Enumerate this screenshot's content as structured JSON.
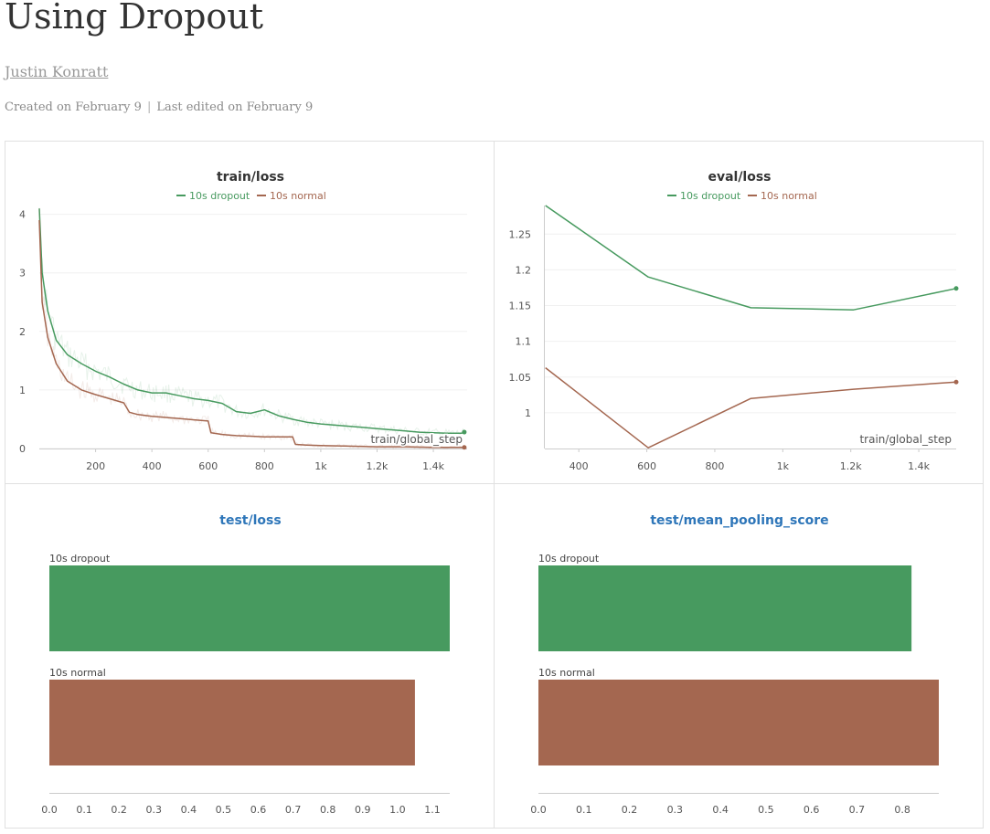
{
  "report": {
    "title": "Using Dropout",
    "author": "Justin Konratt",
    "created": "Created on February 9",
    "edited": "Last edited on February 9"
  },
  "colors": {
    "dropout": "#479A5F",
    "normal": "#A46750",
    "link_title": "#2E76B9"
  },
  "chart_data": [
    {
      "type": "line",
      "title": "train/loss",
      "xlabel": "train/global_step",
      "ylabel": "",
      "xlim": [
        0,
        1520
      ],
      "ylim": [
        0,
        4.15
      ],
      "xticks": [
        200,
        400,
        600,
        800,
        1000,
        1200,
        1400
      ],
      "xtick_labels": [
        "200",
        "400",
        "600",
        "800",
        "1k",
        "1.2k",
        "1.4k"
      ],
      "yticks": [
        0,
        1,
        2,
        3,
        4
      ],
      "ytick_labels": [
        "0",
        "1",
        "2",
        "3",
        "4"
      ],
      "legend": "top",
      "smoothed": true,
      "series": [
        {
          "name": "10s dropout",
          "color": "#479A5F",
          "x": [
            0,
            10,
            30,
            60,
            100,
            150,
            200,
            250,
            300,
            350,
            400,
            450,
            500,
            550,
            600,
            650,
            700,
            750,
            800,
            850,
            900,
            950,
            1000,
            1050,
            1100,
            1150,
            1200,
            1250,
            1300,
            1350,
            1400,
            1450,
            1500,
            1510
          ],
          "y": [
            4.1,
            3.0,
            2.35,
            1.85,
            1.6,
            1.45,
            1.32,
            1.22,
            1.1,
            1.0,
            0.95,
            0.95,
            0.9,
            0.85,
            0.82,
            0.77,
            0.63,
            0.6,
            0.66,
            0.56,
            0.5,
            0.45,
            0.42,
            0.4,
            0.38,
            0.36,
            0.34,
            0.32,
            0.3,
            0.28,
            0.27,
            0.26,
            0.26,
            0.28
          ]
        },
        {
          "name": "10s normal",
          "color": "#A46750",
          "x": [
            0,
            10,
            30,
            60,
            100,
            150,
            200,
            250,
            300,
            320,
            350,
            400,
            450,
            500,
            550,
            600,
            610,
            650,
            700,
            750,
            800,
            850,
            900,
            910,
            950,
            1000,
            1100,
            1200,
            1300,
            1400,
            1450,
            1500,
            1510
          ],
          "y": [
            3.9,
            2.5,
            1.9,
            1.45,
            1.15,
            1.0,
            0.92,
            0.85,
            0.78,
            0.62,
            0.58,
            0.55,
            0.53,
            0.51,
            0.49,
            0.47,
            0.27,
            0.24,
            0.22,
            0.21,
            0.2,
            0.2,
            0.2,
            0.07,
            0.06,
            0.05,
            0.04,
            0.03,
            0.03,
            0.02,
            0.02,
            0.02,
            0.02
          ]
        }
      ]
    },
    {
      "type": "line",
      "title": "eval/loss",
      "xlabel": "train/global_step",
      "ylabel": "",
      "xlim": [
        300,
        1510
      ],
      "ylim": [
        0.95,
        1.29
      ],
      "xticks": [
        400,
        600,
        800,
        1000,
        1200,
        1400
      ],
      "xtick_labels": [
        "400",
        "600",
        "800",
        "1k",
        "1.2k",
        "1.4k"
      ],
      "yticks": [
        1,
        1.05,
        1.1,
        1.15,
        1.2,
        1.25
      ],
      "ytick_labels": [
        "1",
        "1.05",
        "1.1",
        "1.15",
        "1.2",
        "1.25"
      ],
      "legend": "top",
      "series": [
        {
          "name": "10s dropout",
          "color": "#479A5F",
          "x": [
            302,
            604,
            906,
            1208,
            1510
          ],
          "y": [
            1.29,
            1.19,
            1.147,
            1.144,
            1.174
          ]
        },
        {
          "name": "10s normal",
          "color": "#A46750",
          "x": [
            302,
            604,
            906,
            1208,
            1510
          ],
          "y": [
            1.063,
            0.951,
            1.02,
            1.033,
            1.043
          ]
        }
      ]
    },
    {
      "type": "bar",
      "orientation": "horizontal",
      "title": "test/loss",
      "categories": [
        "10s dropout",
        "10s normal"
      ],
      "values": [
        1.15,
        1.05
      ],
      "colors": [
        "#479A5F",
        "#A46750"
      ],
      "xlim": [
        0,
        1.15
      ],
      "xticks": [
        0,
        0.1,
        0.2,
        0.3,
        0.4,
        0.5,
        0.6,
        0.7,
        0.8,
        0.9,
        1.0,
        1.1
      ],
      "xtick_labels": [
        "0.0",
        "0.1",
        "0.2",
        "0.3",
        "0.4",
        "0.5",
        "0.6",
        "0.7",
        "0.8",
        "0.9",
        "1.0",
        "1.1"
      ]
    },
    {
      "type": "bar",
      "orientation": "horizontal",
      "title": "test/mean_pooling_score",
      "categories": [
        "10s dropout",
        "10s normal"
      ],
      "values": [
        0.82,
        0.88
      ],
      "colors": [
        "#479A5F",
        "#A46750"
      ],
      "xlim": [
        0,
        0.88
      ],
      "xticks": [
        0,
        0.1,
        0.2,
        0.3,
        0.4,
        0.5,
        0.6,
        0.7,
        0.8
      ],
      "xtick_labels": [
        "0.0",
        "0.1",
        "0.2",
        "0.3",
        "0.4",
        "0.5",
        "0.6",
        "0.7",
        "0.8"
      ]
    }
  ]
}
